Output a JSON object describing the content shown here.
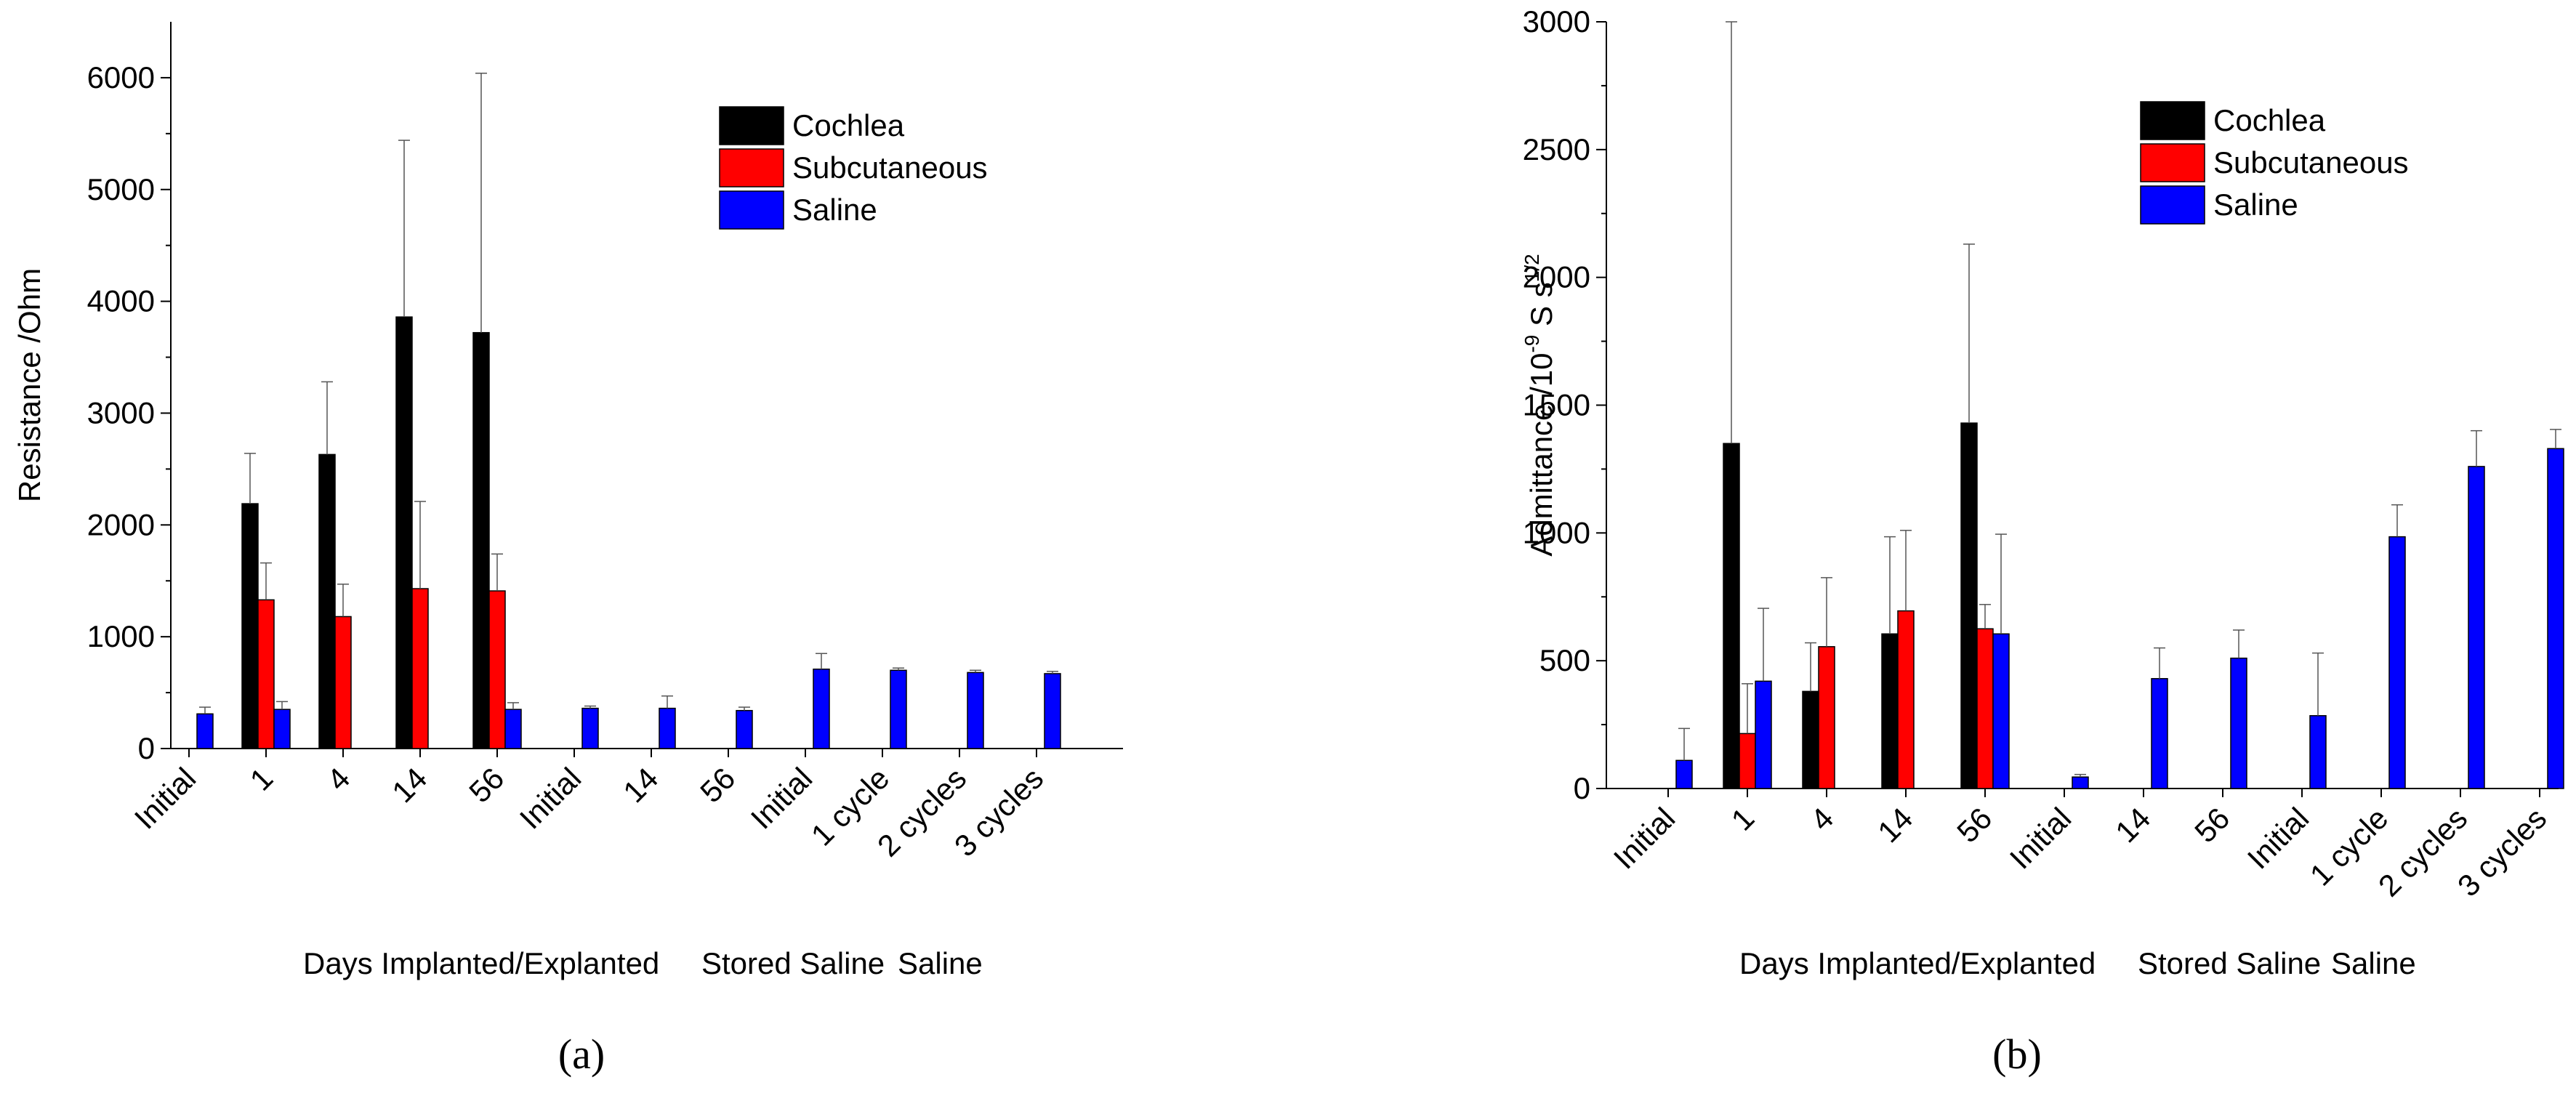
{
  "chart_data": [
    {
      "type": "bar",
      "panel_label": "(a)",
      "ylabel": "Resistance /Ohm",
      "ylim": [
        0,
        6500
      ],
      "yticks": [
        0,
        1000,
        2000,
        3000,
        4000,
        5000,
        6000
      ],
      "categories": [
        "Initial",
        "1",
        "4",
        "14",
        "56",
        "Initial",
        "14",
        "56",
        "Initial",
        "1 cycle",
        "2 cycles",
        "3 cycles"
      ],
      "group_labels": [
        "Days Implanted/Explanted",
        "Stored Saline",
        "Saline"
      ],
      "series": [
        {
          "name": "Cochlea",
          "color": "#000000",
          "values": [
            null,
            2190,
            2630,
            3860,
            3720,
            null,
            null,
            null,
            null,
            null,
            null,
            null
          ],
          "errors": [
            null,
            450,
            650,
            1580,
            2320,
            null,
            null,
            null,
            null,
            null,
            null,
            null
          ]
        },
        {
          "name": "Subcutaneous",
          "color": "#ff0000",
          "values": [
            null,
            1330,
            1180,
            1430,
            1410,
            null,
            null,
            null,
            null,
            null,
            null,
            null
          ],
          "errors": [
            null,
            330,
            290,
            780,
            330,
            null,
            null,
            null,
            null,
            null,
            null,
            null
          ]
        },
        {
          "name": "Saline",
          "color": "#0000ff",
          "values": [
            310,
            350,
            null,
            null,
            350,
            360,
            360,
            340,
            710,
            700,
            680,
            670
          ],
          "errors": [
            60,
            70,
            null,
            null,
            60,
            20,
            110,
            30,
            140,
            20,
            20,
            20
          ]
        }
      ],
      "legend_position": "top-right",
      "grid": false
    },
    {
      "type": "bar",
      "panel_label": "(b)",
      "ylabel": "Admittance /10-9 S s1/2",
      "ylabel_parts": {
        "base": "Admittance /10",
        "exp1": "-9",
        "mid": " S s",
        "exp2": "1/2"
      },
      "ylim": [
        0,
        3000
      ],
      "yticks": [
        0,
        500,
        1000,
        1500,
        2000,
        2500,
        3000
      ],
      "categories": [
        "Initial",
        "1",
        "4",
        "14",
        "56",
        "Initial",
        "14",
        "56",
        "Initial",
        "1 cycle",
        "2 cycles",
        "3 cycles"
      ],
      "group_labels": [
        "Days Implanted/Explanted",
        "Stored Saline",
        "Saline"
      ],
      "series": [
        {
          "name": "Cochlea",
          "color": "#000000",
          "values": [
            null,
            1350,
            380,
            605,
            1430,
            null,
            null,
            null,
            null,
            null,
            null,
            null
          ],
          "errors": [
            null,
            1650,
            190,
            380,
            700,
            null,
            null,
            null,
            null,
            null,
            null,
            null
          ]
        },
        {
          "name": "Subcutaneous",
          "color": "#ff0000",
          "values": [
            null,
            215,
            555,
            695,
            625,
            null,
            null,
            null,
            null,
            null,
            null,
            null
          ],
          "errors": [
            null,
            195,
            270,
            315,
            95,
            null,
            null,
            null,
            null,
            null,
            null,
            null
          ]
        },
        {
          "name": "Saline",
          "color": "#0000ff",
          "values": [
            110,
            420,
            null,
            null,
            605,
            45,
            430,
            510,
            285,
            985,
            1260,
            1330
          ],
          "errors": [
            125,
            285,
            null,
            null,
            390,
            10,
            120,
            110,
            245,
            125,
            140,
            75
          ]
        }
      ],
      "legend_position": "top-right",
      "grid": false
    }
  ]
}
